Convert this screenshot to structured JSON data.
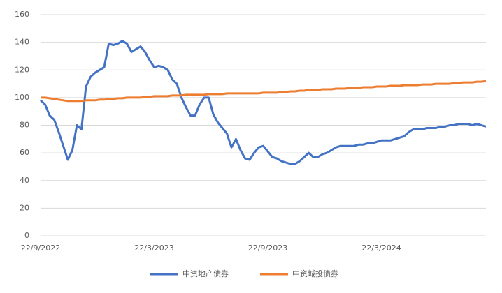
{
  "chart_data": {
    "type": "line",
    "categories": [
      "22/9/2022",
      null,
      null,
      null,
      null,
      null,
      null,
      null,
      null,
      null,
      null,
      null,
      null,
      null,
      null,
      null,
      null,
      null,
      null,
      null,
      null,
      null,
      null,
      null,
      null,
      "22/3/2023",
      null,
      null,
      null,
      null,
      null,
      null,
      null,
      null,
      null,
      null,
      null,
      null,
      null,
      null,
      null,
      null,
      null,
      null,
      null,
      null,
      null,
      null,
      null,
      null,
      "22/9/2023",
      null,
      null,
      null,
      null,
      null,
      null,
      null,
      null,
      null,
      null,
      null,
      null,
      null,
      null,
      null,
      null,
      null,
      null,
      null,
      null,
      null,
      null,
      null,
      null,
      "22/3/2024",
      null,
      null,
      null,
      null,
      null,
      null,
      null,
      null,
      null,
      null,
      null,
      null,
      null,
      null,
      null,
      null,
      null,
      null,
      null,
      null,
      null,
      null,
      null
    ],
    "series": [
      {
        "name": "中资地产债券",
        "color": "#4472c4",
        "values": [
          98,
          95,
          87,
          84,
          75,
          65,
          55,
          62,
          80,
          77,
          108,
          115,
          118,
          120,
          122,
          139,
          138,
          139,
          141,
          139,
          133,
          135,
          137,
          133,
          127,
          122,
          123,
          122,
          120,
          113,
          110,
          100,
          93,
          87,
          87,
          95,
          100,
          100,
          88,
          82,
          78,
          74,
          64,
          70,
          62,
          56,
          55,
          60,
          64,
          65,
          61,
          57,
          56,
          54,
          53,
          52,
          52,
          54,
          57,
          60,
          57,
          57,
          59,
          60,
          62,
          64,
          65,
          65,
          65,
          65,
          66,
          66,
          67,
          67,
          68,
          69,
          69,
          69,
          70,
          71,
          72,
          75,
          77,
          77,
          77,
          78,
          78,
          78,
          79,
          79,
          80,
          80,
          81,
          81,
          81,
          80,
          81,
          80,
          79
        ]
      },
      {
        "name": "中资城投债券",
        "color": "#ed7d31",
        "values": [
          100,
          100,
          99.5,
          99,
          98.5,
          98,
          97.5,
          97.5,
          97.5,
          97.5,
          98,
          98,
          98,
          98.5,
          98.5,
          99,
          99,
          99.5,
          99.5,
          100,
          100,
          100,
          100,
          100.5,
          100.5,
          101,
          101,
          101,
          101,
          101.5,
          101.5,
          101.5,
          102,
          102,
          102,
          102,
          102,
          102.5,
          102.5,
          102.5,
          102.5,
          103,
          103,
          103,
          103,
          103,
          103,
          103,
          103,
          103.5,
          103.5,
          103.5,
          103.5,
          104,
          104,
          104.5,
          104.5,
          105,
          105,
          105.5,
          105.5,
          105.5,
          106,
          106,
          106,
          106.5,
          106.5,
          106.5,
          107,
          107,
          107,
          107.5,
          107.5,
          107.5,
          108,
          108,
          108,
          108.5,
          108.5,
          108.5,
          109,
          109,
          109,
          109,
          109.5,
          109.5,
          109.5,
          110,
          110,
          110,
          110,
          110.5,
          110.5,
          111,
          111,
          111,
          111.5,
          111.5,
          112
        ]
      }
    ],
    "ylim": [
      0,
      160
    ],
    "yticks": [
      0,
      20,
      40,
      60,
      80,
      100,
      120,
      140,
      160
    ],
    "grid": true
  }
}
